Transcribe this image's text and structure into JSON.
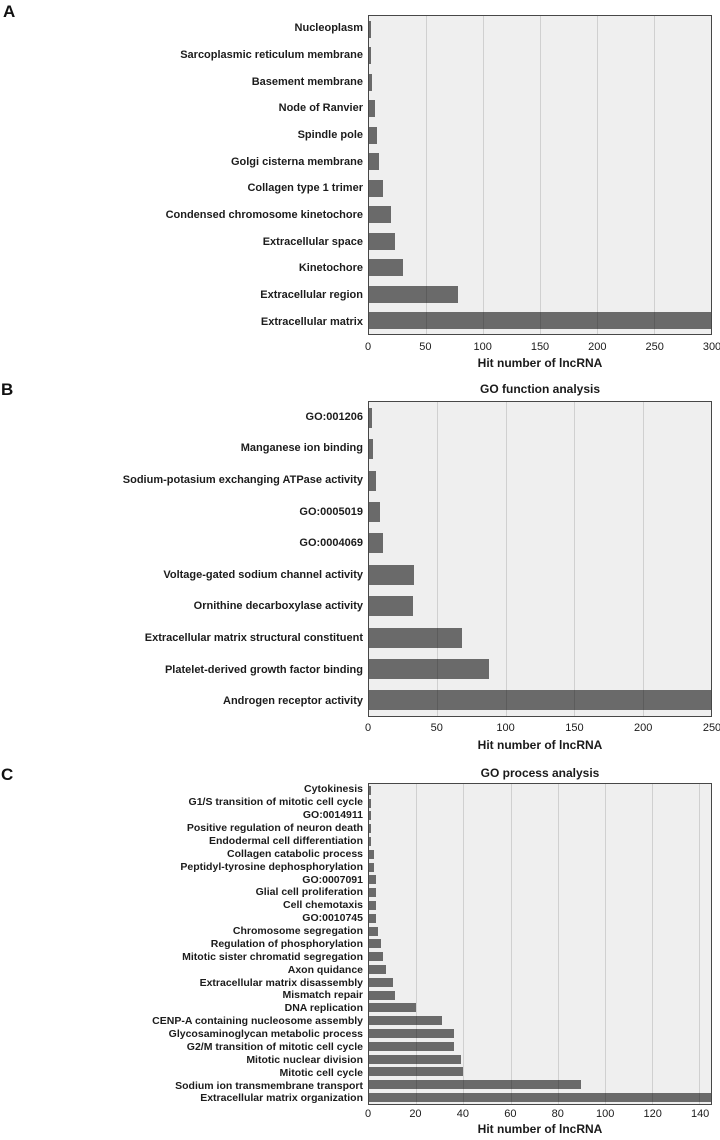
{
  "figure": {
    "description": "Three-panel GO analysis horizontal bar charts of lncRNA hit numbers"
  },
  "panels": [
    {
      "letter": "A",
      "title": "",
      "xlabel": "Hit number of lncRNA"
    },
    {
      "letter": "B",
      "title": "GO function analysis",
      "xlabel": "Hit number of lncRNA"
    },
    {
      "letter": "C",
      "title": "GO process analysis",
      "xlabel": "Hit number of lncRNA"
    }
  ],
  "colors": {
    "bar": "#6a6a6a",
    "plot_background": "#efefef",
    "plot_border": "#474747",
    "gridline": "rgba(0,0,0,0.13)",
    "text": "#1a1a1a"
  },
  "chart_data": [
    {
      "type": "bar",
      "orientation": "horizontal",
      "panel": "A",
      "title": "",
      "xlabel": "Hit number of lncRNA",
      "xlim": [
        0,
        300
      ],
      "ticks": [
        0,
        50,
        100,
        150,
        200,
        250,
        300
      ],
      "grid": true,
      "categories": [
        "Nucleoplasm",
        "Sarcoplasmic reticulum membrane",
        "Basement membrane",
        "Node of Ranvier",
        "Spindle pole",
        "Golgi cisterna membrane",
        "Collagen type 1 trimer",
        "Condensed chromosome kinetochore",
        "Extracellular space",
        "Kinetochore",
        "Extracellular region",
        "Extracellular matrix"
      ],
      "values": [
        2,
        2,
        3,
        5,
        7,
        9,
        12,
        19,
        23,
        30,
        78,
        300
      ]
    },
    {
      "type": "bar",
      "orientation": "horizontal",
      "panel": "B",
      "title": "GO function analysis",
      "xlabel": "Hit number of lncRNA",
      "xlim": [
        0,
        250
      ],
      "ticks": [
        0,
        50,
        100,
        150,
        200,
        250
      ],
      "grid": true,
      "categories": [
        "GO:001206",
        "Manganese ion binding",
        "Sodium-potasium exchanging ATPase activity",
        "GO:0005019",
        "GO:0004069",
        "Voltage-gated sodium channel activity",
        "Ornithine decarboxylase activity",
        "Extracellular matrix structural constituent",
        "Platelet-derived growth factor binding",
        "Androgen receptor activity"
      ],
      "values": [
        2,
        3,
        5,
        8,
        10,
        33,
        32,
        68,
        88,
        250
      ]
    },
    {
      "type": "bar",
      "orientation": "horizontal",
      "panel": "C",
      "title": "GO process analysis",
      "xlabel": "Hit number of lncRNA",
      "xlim": [
        0,
        145
      ],
      "ticks": [
        0,
        20,
        40,
        60,
        80,
        100,
        120,
        140
      ],
      "grid": true,
      "categories": [
        "Cytokinesis",
        "G1/S transition of mitotic cell cycle",
        "GO:0014911",
        "Positive regulation of neuron death",
        "Endodermal cell differentiation",
        "Collagen catabolic process",
        "Peptidyl-tyrosine dephosphorylation",
        "GO:0007091",
        "Glial cell proliferation",
        "Cell chemotaxis",
        "GO:0010745",
        "Chromosome segregation",
        "Regulation of phosphorylation",
        "Mitotic sister chromatid segregation",
        "Axon quidance",
        "Extracellular matrix disassembly",
        "Mismatch repair",
        "DNA replication",
        "CENP-A containing nucleosome assembly",
        "Glycosaminoglycan metabolic process",
        "G2/M transition of mitotic cell cycle",
        "Mitotic nuclear division",
        "Mitotic cell cycle",
        "Sodium ion transmembrane transport",
        "Extracellular matrix organization"
      ],
      "values": [
        1,
        1,
        1,
        1,
        1,
        2,
        2,
        3,
        3,
        3,
        3,
        4,
        5,
        6,
        7,
        10,
        11,
        20,
        31,
        36,
        36,
        39,
        40,
        90,
        145
      ]
    }
  ]
}
